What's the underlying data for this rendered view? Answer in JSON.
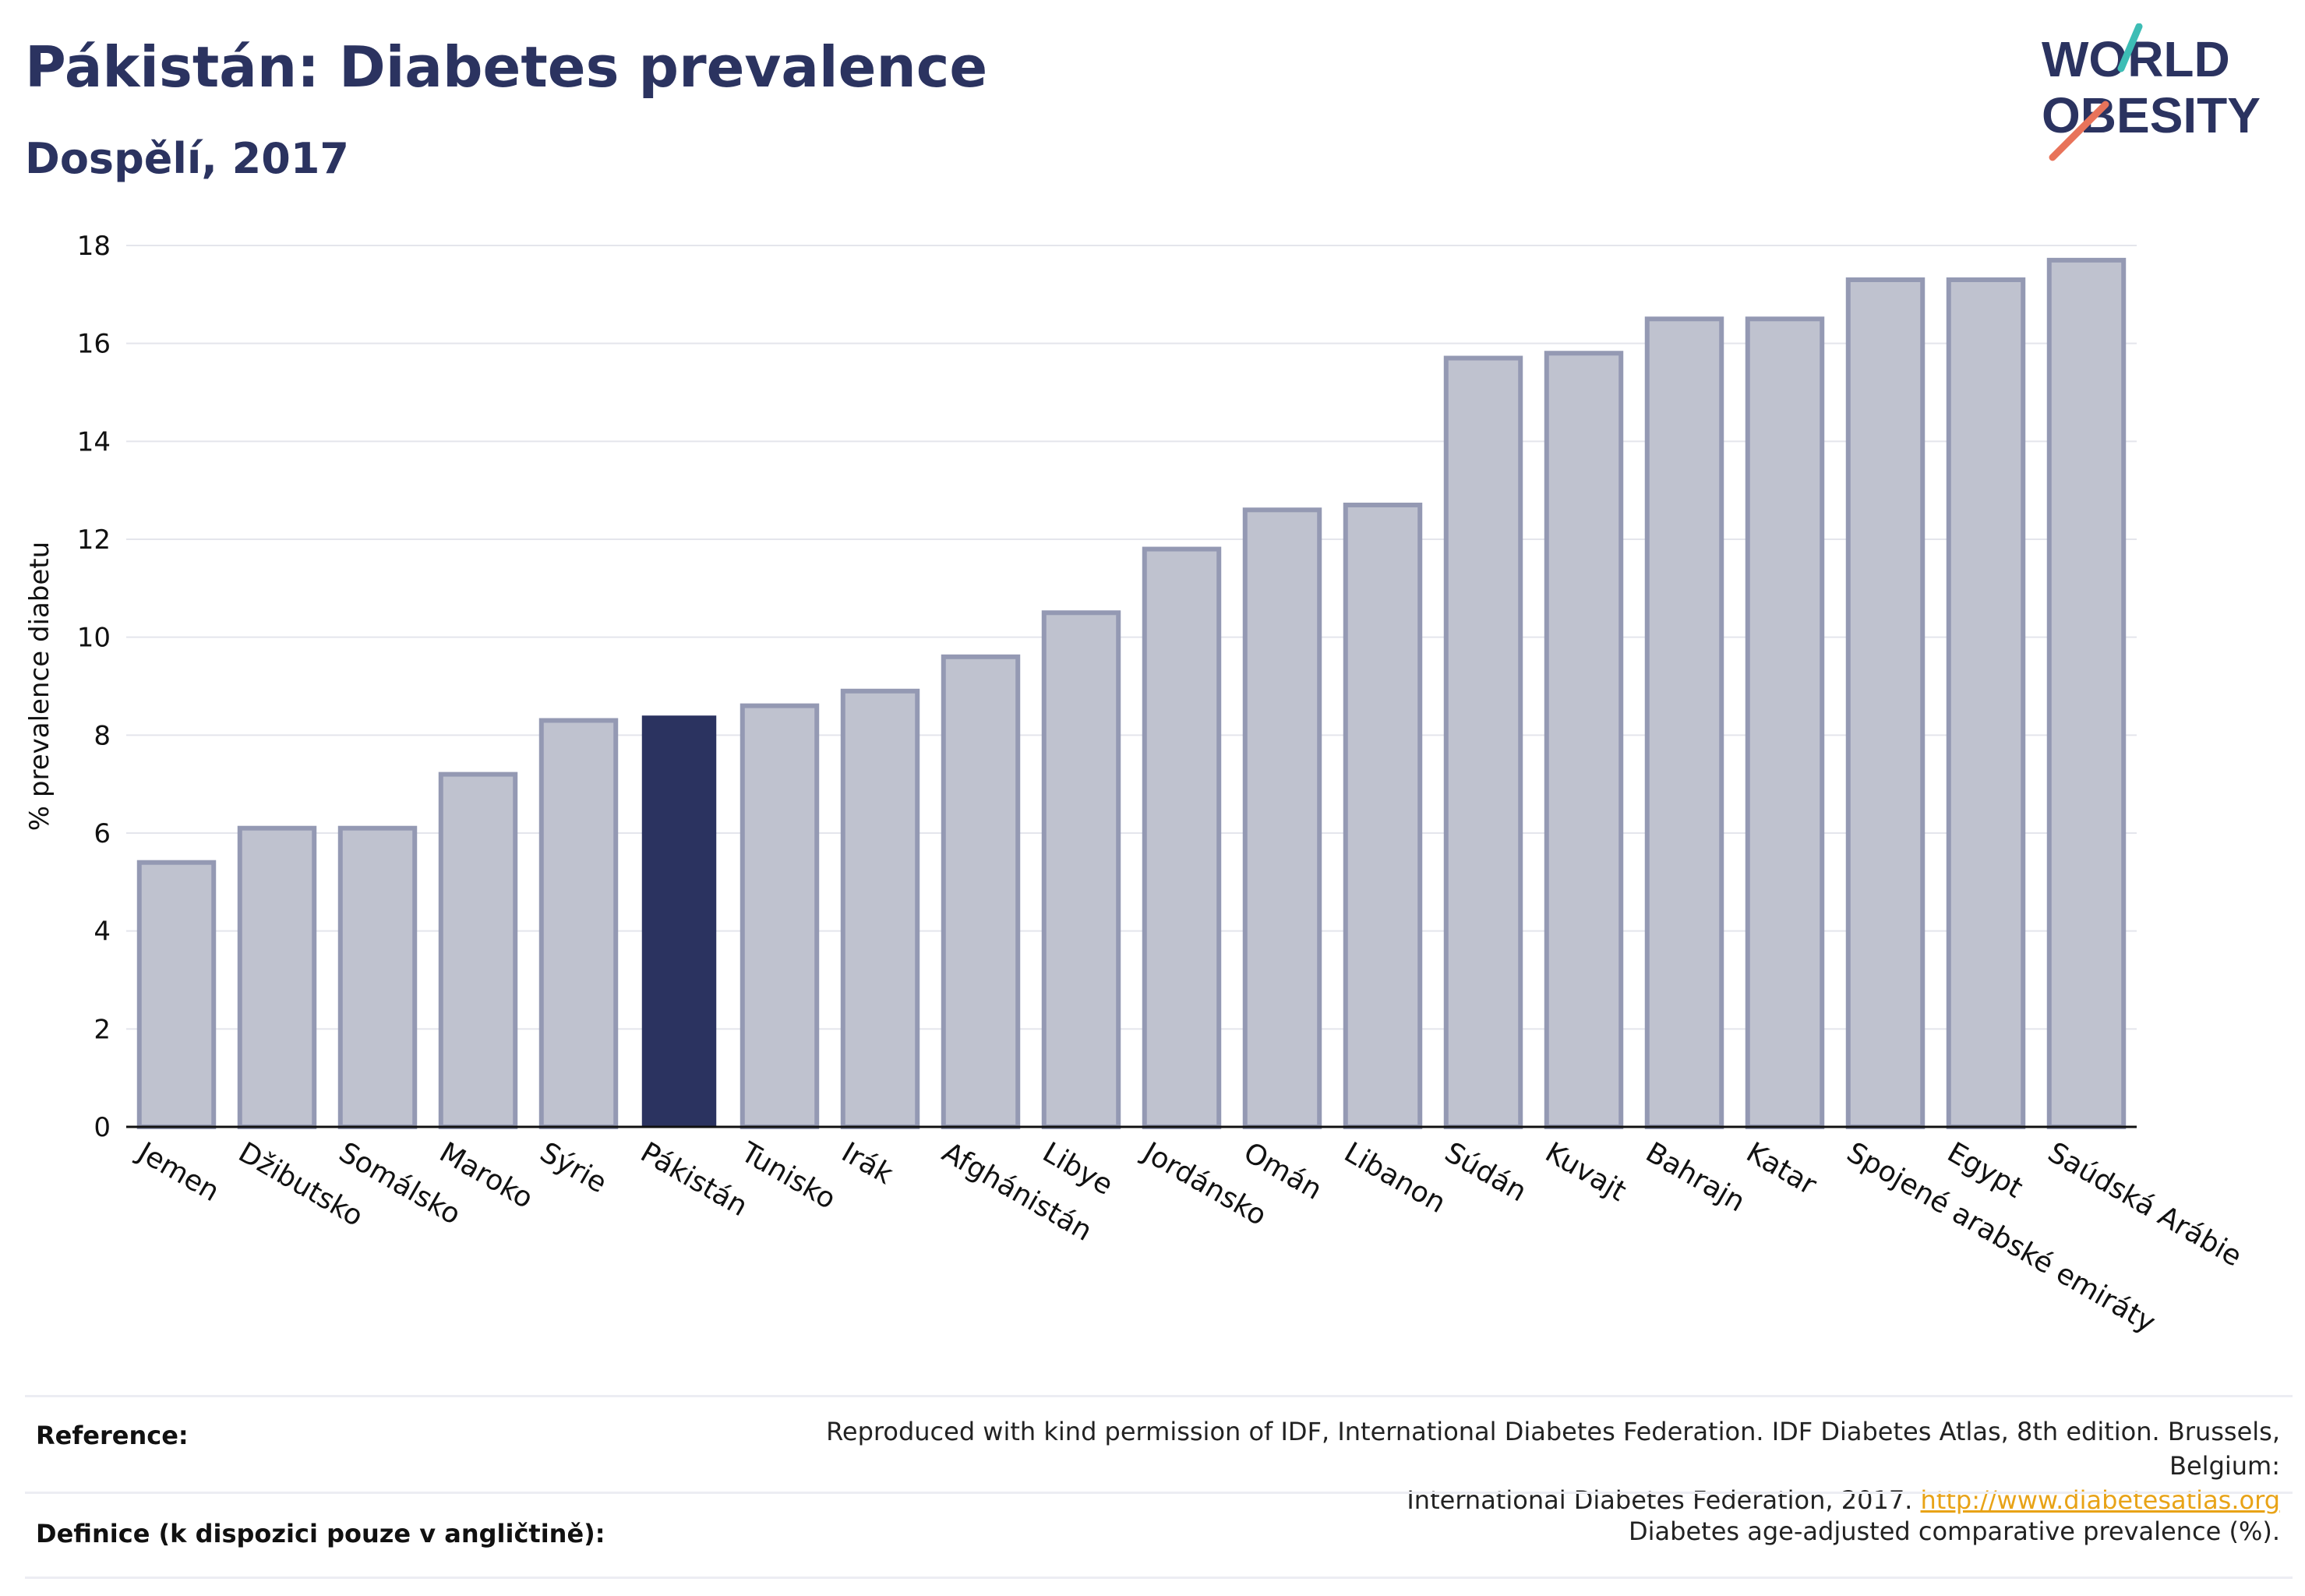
{
  "header": {
    "title": "Pákistán: Diabetes prevalence",
    "subtitle": "Dospělí, 2017"
  },
  "logo": {
    "line1": "WORLD",
    "line2": "OBESITY",
    "slash_colors": [
      "#3dbdb5",
      "#e8735a"
    ],
    "text_color": "#2b3360"
  },
  "chart_data": {
    "type": "bar",
    "ylabel": "% prevalence diabetu",
    "ylim": [
      0,
      18
    ],
    "yticks": [
      0,
      2,
      4,
      6,
      8,
      10,
      12,
      14,
      16,
      18
    ],
    "grid": true,
    "highlight_category": "Pákistán",
    "colors": {
      "highlight": "#2b3360",
      "bar": "#bfc2cf",
      "bar_edge": "#9499b3"
    },
    "categories": [
      "Jemen",
      "Džibutsko",
      "Somálsko",
      "Maroko",
      "Sýrie",
      "Pákistán",
      "Tunisko",
      "Irák",
      "Afghánistán",
      "Libye",
      "Jordánsko",
      "Omán",
      "Libanon",
      "Súdán",
      "Kuvajt",
      "Bahrajn",
      "Katar",
      "Spojené arabské emiráty",
      "Egypt",
      "Saúdská Arábie"
    ],
    "values": [
      5.4,
      6.1,
      6.1,
      7.2,
      8.3,
      8.4,
      8.6,
      8.9,
      9.6,
      10.5,
      11.8,
      12.6,
      12.7,
      15.7,
      15.8,
      16.5,
      16.5,
      17.3,
      17.3,
      17.7
    ]
  },
  "footer": {
    "reference_label": "Reference:",
    "reference_text_1": "Reproduced with kind permission of IDF, International Diabetes Federation. IDF Diabetes Atlas, 8th edition. Brussels, Belgium:",
    "reference_text_2": "International Diabetes Federation, 2017.",
    "reference_link": "http://www.diabetesatlas.org",
    "definition_label": "Definice (k dispozici pouze v angličtině):",
    "definition_text": "Diabetes age-adjusted comparative prevalence (%)."
  }
}
